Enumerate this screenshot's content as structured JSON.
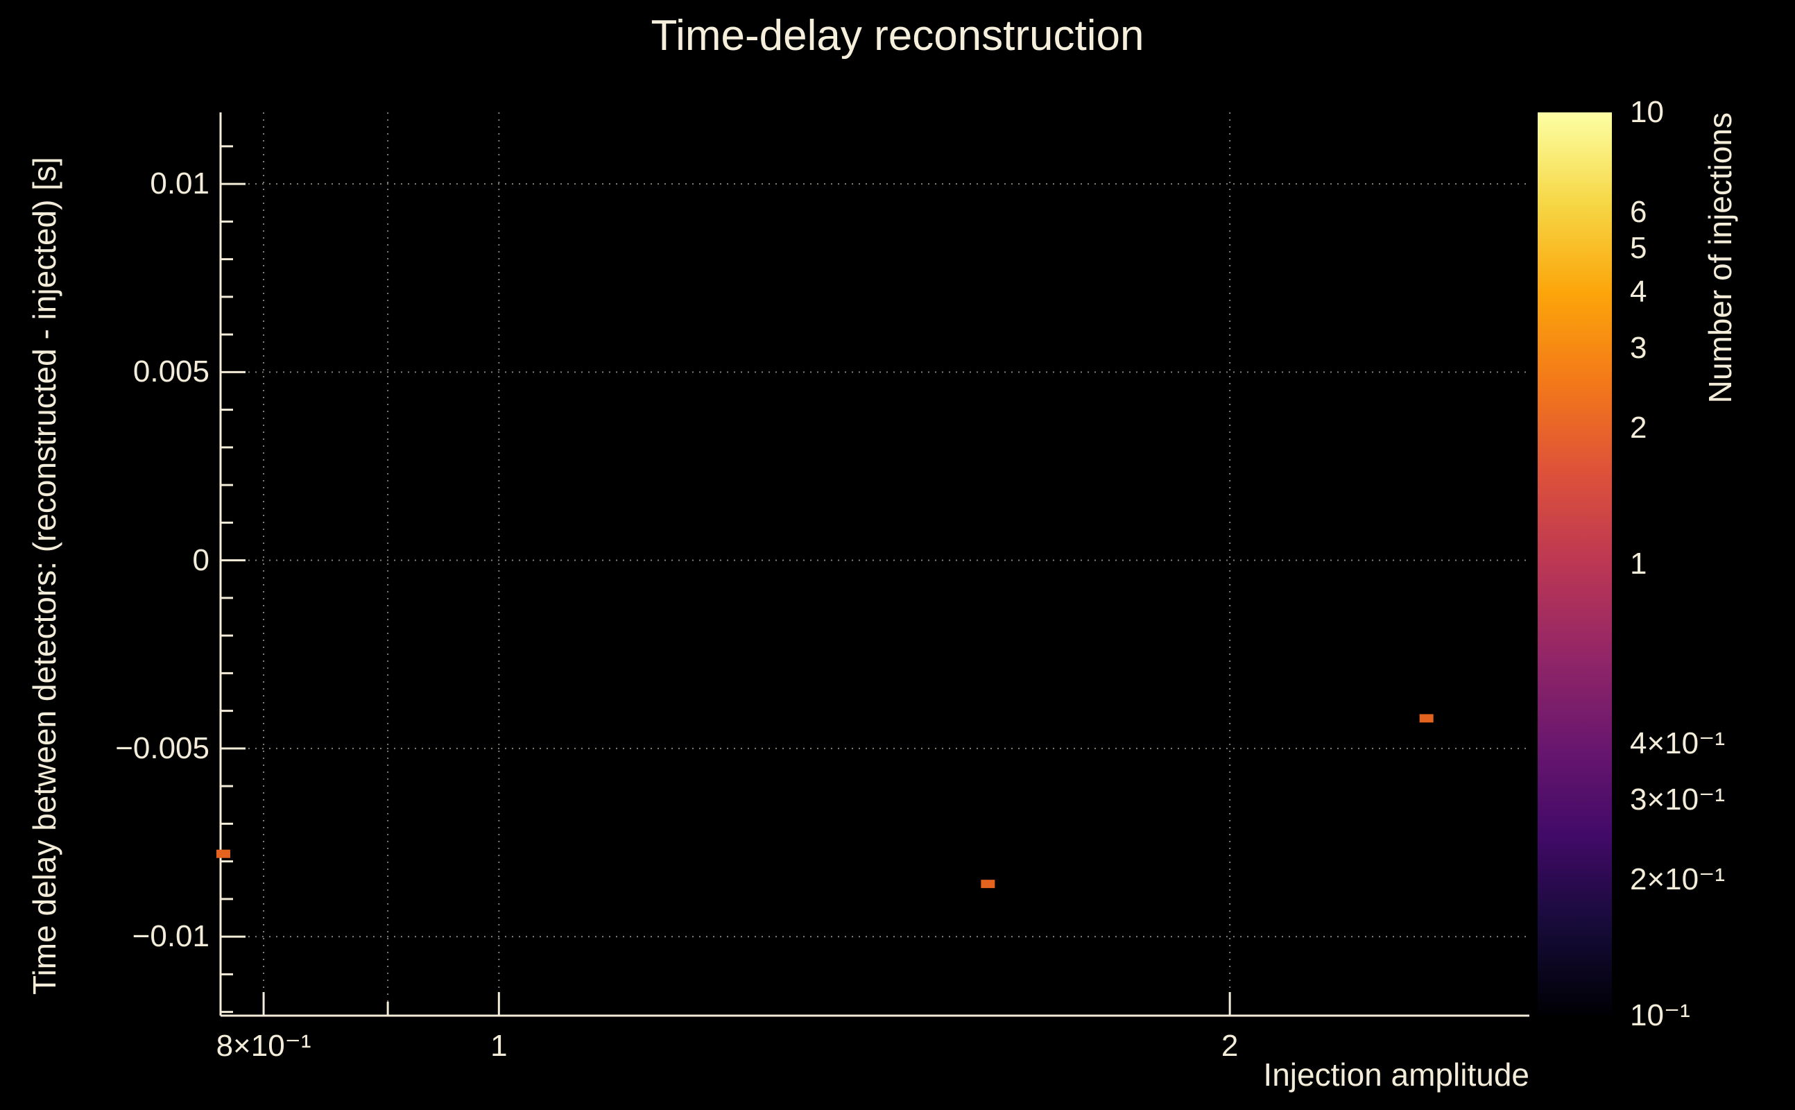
{
  "window": {
    "background_color": "#000000",
    "text_color": "#f3ecd9"
  },
  "chart_data": {
    "type": "scatter",
    "title": "Time-delay reconstruction",
    "xlabel": "Injection amplitude",
    "ylabel": "Time delay between detectors: (reconstructed - injected) [s]",
    "x_scale": "log",
    "y_scale": "linear",
    "xlim": [
      0.768,
      2.657
    ],
    "ylim": [
      -0.0121,
      0.0119
    ],
    "grid": true,
    "x_ticks": [
      {
        "value": 0.8,
        "label": "8×10⁻¹",
        "major": true
      },
      {
        "value": 0.9,
        "label": "",
        "major": false
      },
      {
        "value": 1,
        "label": "1",
        "major": true
      },
      {
        "value": 2,
        "label": "2",
        "major": true
      }
    ],
    "y_major_step": 0.005,
    "y_minor_step": 0.001,
    "y_ticks": [
      {
        "value": 0.01,
        "label": "0.01"
      },
      {
        "value": 0.005,
        "label": "0.005"
      },
      {
        "value": 0,
        "label": "0"
      },
      {
        "value": -0.005,
        "label": "−0.005"
      },
      {
        "value": -0.01,
        "label": "−0.01"
      }
    ],
    "points": [
      {
        "x": 0.77,
        "y": -0.0078,
        "count": 1
      },
      {
        "x": 1.59,
        "y": -0.0086,
        "count": 1
      },
      {
        "x": 2.41,
        "y": -0.0042,
        "count": 1
      }
    ],
    "point_color": "#e4641f",
    "colorbar": {
      "label": "Number of injections",
      "scale": "log",
      "range": [
        0.1,
        10
      ],
      "ticks": [
        {
          "value": 10,
          "label": "10"
        },
        {
          "value": 6,
          "label": "6"
        },
        {
          "value": 5,
          "label": "5"
        },
        {
          "value": 4,
          "label": "4"
        },
        {
          "value": 3,
          "label": "3"
        },
        {
          "value": 2,
          "label": "2"
        },
        {
          "value": 1,
          "label": "1"
        },
        {
          "value": 0.4,
          "label": "4×10⁻¹"
        },
        {
          "value": 0.3,
          "label": "3×10⁻¹"
        },
        {
          "value": 0.2,
          "label": "2×10⁻¹"
        },
        {
          "value": 0.1,
          "label": "10⁻¹"
        }
      ],
      "gradient": [
        "#000004",
        "#160b39",
        "#420a68",
        "#6a176e",
        "#932667",
        "#bc3754",
        "#dd513a",
        "#f37819",
        "#fca50a",
        "#f6d746",
        "#fcffa4"
      ]
    }
  }
}
